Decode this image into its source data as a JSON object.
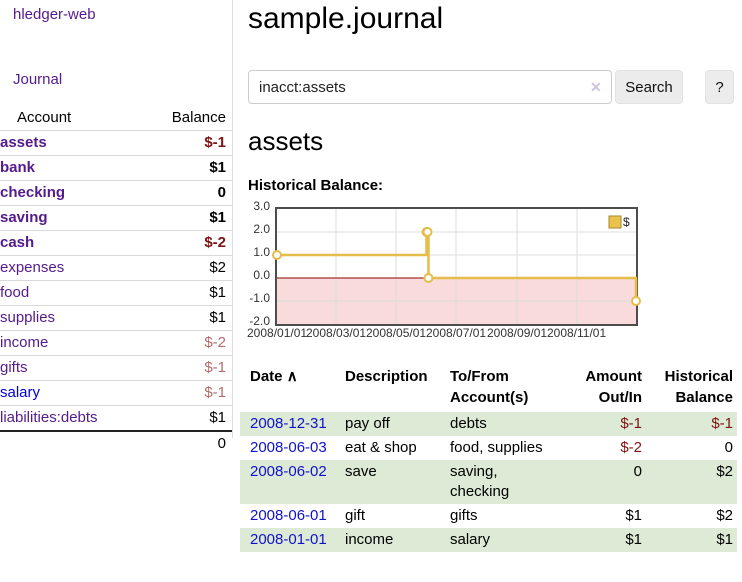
{
  "sidebar": {
    "brand": "hledger-web",
    "journal_link": "Journal",
    "headers": {
      "account": "Account",
      "balance": "Balance"
    },
    "accounts": [
      {
        "name": "assets",
        "balance": "$-1"
      },
      {
        "name": "bank",
        "balance": "$1"
      },
      {
        "name": "checking",
        "balance": "0"
      },
      {
        "name": "saving",
        "balance": "$1"
      },
      {
        "name": "cash",
        "balance": "$-2"
      },
      {
        "name": "expenses",
        "balance": "$2"
      },
      {
        "name": "food",
        "balance": "$1"
      },
      {
        "name": "supplies",
        "balance": "$1"
      },
      {
        "name": "income",
        "balance": "$-2"
      },
      {
        "name": "gifts",
        "balance": "$-1"
      },
      {
        "name": "salary",
        "balance": "$-1"
      },
      {
        "name": "liabilities:debts",
        "balance": "$1"
      }
    ],
    "total": "0"
  },
  "header": {
    "title": "sample.journal"
  },
  "search": {
    "value": "inacct:assets",
    "clear_icon": "✕",
    "button_label": "Search",
    "help_label": "?"
  },
  "account_page": {
    "heading": "assets",
    "chart_label": "Historical Balance:"
  },
  "chart_data": {
    "type": "line",
    "step": true,
    "title": "Historical Balance",
    "series": [
      {
        "name": "$",
        "points": [
          [
            "2008-01-01",
            1
          ],
          [
            "2008-06-01",
            2
          ],
          [
            "2008-06-02",
            2
          ],
          [
            "2008-06-03",
            0
          ],
          [
            "2008-12-31",
            -1
          ]
        ]
      }
    ],
    "x_range": [
      "2008/01/01",
      "2008/12/31"
    ],
    "x_ticks": [
      "2008/01/01",
      "2008/03/01",
      "2008/05/01",
      "2008/07/01",
      "2008/09/01",
      "2008/11/01"
    ],
    "y_ticks": [
      3.0,
      2.0,
      1.0,
      0.0,
      -1.0,
      -2.0
    ],
    "y_tick_labels": [
      "3.0",
      "2.0",
      "1.0",
      "0.0",
      "-1.0",
      "-2.0"
    ],
    "ylim": [
      -2,
      3
    ],
    "legend": "$",
    "legend_position": "top-right",
    "grid": true,
    "colors": {
      "line": "#e6bc4a",
      "marker_fill": "#ffffff",
      "legend_fill": "#ecc24e",
      "legend_border": "#a8862c",
      "negative_fill": "#f9dbdb",
      "zero_line": "#8b0000",
      "grid": "#dddddd",
      "border": "#4d4d4d"
    }
  },
  "transactions": {
    "sort_icon": "∧",
    "headers": {
      "date": "Date",
      "description": "Description",
      "accounts": "To/From Account(s)",
      "amount": "Amount Out/In",
      "balance": "Historical Balance"
    },
    "rows": [
      {
        "date": "2008-12-31",
        "description": "pay off",
        "accounts": "debts",
        "amount": "$-1",
        "balance": "$-1"
      },
      {
        "date": "2008-06-03",
        "description": "eat & shop",
        "accounts": "food, supplies",
        "amount": "$-2",
        "balance": "0"
      },
      {
        "date": "2008-06-02",
        "description": "save",
        "accounts": "saving, checking",
        "amount": "0",
        "balance": "$2"
      },
      {
        "date": "2008-06-01",
        "description": "gift",
        "accounts": "gifts",
        "amount": "$1",
        "balance": "$2"
      },
      {
        "date": "2008-01-01",
        "description": "income",
        "accounts": "salary",
        "amount": "$1",
        "balance": "$1"
      }
    ]
  }
}
